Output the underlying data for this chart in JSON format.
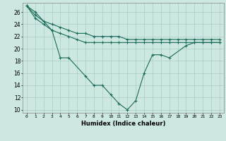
{
  "xlabel": "Humidex (Indice chaleur)",
  "bg_color": "#cce8e0",
  "line_color": "#1a6b5a",
  "grid_color": "#aacccc",
  "xlim": [
    -0.5,
    23.5
  ],
  "ylim": [
    9.5,
    27.5
  ],
  "yticks": [
    10,
    12,
    14,
    16,
    18,
    20,
    22,
    24,
    26
  ],
  "xticks": [
    0,
    1,
    2,
    3,
    4,
    5,
    6,
    7,
    8,
    9,
    10,
    11,
    12,
    13,
    14,
    15,
    16,
    17,
    18,
    19,
    20,
    21,
    22,
    23
  ],
  "x_main": [
    0,
    1,
    3,
    4,
    5,
    7,
    8,
    9,
    10,
    11,
    12,
    13,
    14,
    15,
    16,
    17,
    19,
    20,
    21,
    22,
    23
  ],
  "y_main": [
    27,
    26,
    23,
    18.5,
    18.5,
    15.5,
    14,
    14,
    12.5,
    11,
    10,
    11.5,
    16,
    19,
    19,
    18.5,
    20.5,
    21,
    21,
    21,
    21
  ],
  "x_upper": [
    0,
    1,
    2,
    3,
    4,
    5,
    6,
    7,
    8,
    9,
    10,
    11,
    12,
    13,
    14,
    15,
    16,
    17,
    18,
    19,
    20,
    21,
    22,
    23
  ],
  "y_upper": [
    27,
    25.5,
    24.5,
    24,
    23.5,
    23,
    22.5,
    22.5,
    22,
    22,
    22,
    22,
    21.5,
    21.5,
    21.5,
    21.5,
    21.5,
    21.5,
    21.5,
    21.5,
    21.5,
    21.5,
    21.5,
    21.5
  ],
  "x_lower": [
    0,
    1,
    2,
    3,
    4,
    5,
    6,
    7,
    8,
    9,
    10,
    11,
    12,
    13,
    14,
    15,
    16,
    17,
    18,
    19,
    20,
    21,
    22,
    23
  ],
  "y_lower": [
    27,
    25,
    24,
    23,
    22.5,
    22,
    21.5,
    21,
    21,
    21,
    21,
    21,
    21,
    21,
    21,
    21,
    21,
    21,
    21,
    21,
    21,
    21,
    21,
    21
  ]
}
